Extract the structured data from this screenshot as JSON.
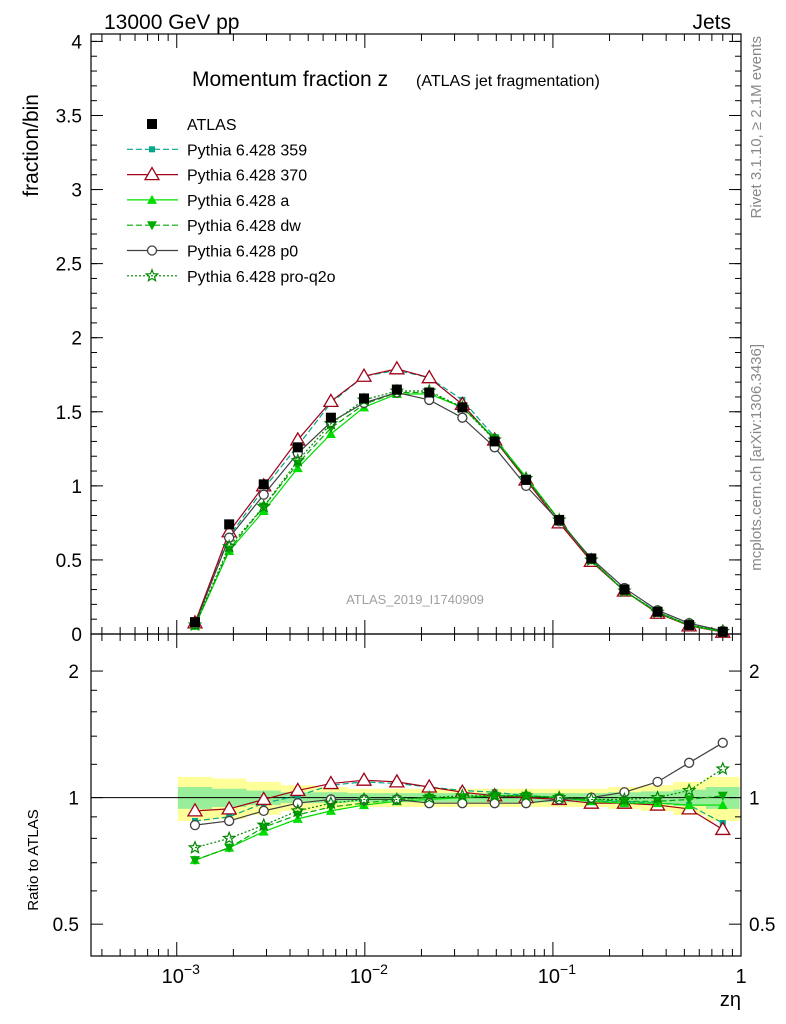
{
  "header": {
    "left": "13000 GeV pp",
    "right": "Jets"
  },
  "side": {
    "rivet": "Rivet 3.1.10, ≥ 2.1M events",
    "source": "mcplots.cern.ch [arXiv:1306.3436]"
  },
  "plot_title": {
    "main": "Momentum fraction z",
    "sub": "(ATLAS jet fragmentation)"
  },
  "watermark": "ATLAS_2019_I1740909",
  "chart_data": {
    "type": "line",
    "title": "Momentum fraction z (ATLAS jet fragmentation)",
    "x_scale": "log",
    "xlabel": "zη",
    "x_ticks": [
      {
        "value": 0.001,
        "base": "10",
        "exp": "−3"
      },
      {
        "value": 0.01,
        "base": "10",
        "exp": "−2"
      },
      {
        "value": 0.1,
        "base": "10",
        "exp": "−1"
      },
      {
        "value": 1,
        "base": "1",
        "exp": ""
      }
    ],
    "x": [
      0.00125,
      0.0019,
      0.0029,
      0.0044,
      0.0066,
      0.0099,
      0.0148,
      0.022,
      0.033,
      0.049,
      0.072,
      0.108,
      0.16,
      0.24,
      0.36,
      0.53,
      0.8
    ],
    "main": {
      "ylabel": "fraction/bin",
      "ylim": [
        0,
        4.05
      ],
      "y_ticks": [
        "0",
        "0.5",
        "1",
        "1.5",
        "2",
        "2.5",
        "3",
        "3.5",
        "4"
      ],
      "series": [
        {
          "name": "ATLAS",
          "color": "#000000",
          "dash": "",
          "marker": "square",
          "values": [
            0.08,
            0.74,
            1.01,
            1.26,
            1.46,
            1.59,
            1.65,
            1.63,
            1.53,
            1.3,
            1.04,
            0.77,
            0.51,
            0.3,
            0.15,
            0.06,
            0.015
          ]
        },
        {
          "name": "Pythia 6.428 359",
          "color": "#00a88a",
          "dash": "6,3",
          "marker": "smallsquare",
          "values": [
            0.07,
            0.66,
            0.98,
            1.27,
            1.56,
            1.74,
            1.78,
            1.73,
            1.58,
            1.33,
            1.05,
            0.77,
            0.5,
            0.29,
            0.15,
            0.06,
            0.013
          ]
        },
        {
          "name": "Pythia 6.428 370",
          "color": "#a00018",
          "dash": "",
          "marker": "opentriangle",
          "values": [
            0.075,
            0.69,
            1.0,
            1.31,
            1.57,
            1.74,
            1.79,
            1.73,
            1.55,
            1.31,
            1.04,
            0.75,
            0.49,
            0.29,
            0.14,
            0.055,
            0.012
          ]
        },
        {
          "name": "Pythia 6.428 a",
          "color": "#00dd00",
          "dash": "",
          "marker": "triangle",
          "values": [
            0.055,
            0.56,
            0.83,
            1.12,
            1.35,
            1.53,
            1.62,
            1.62,
            1.53,
            1.32,
            1.06,
            0.77,
            0.5,
            0.29,
            0.145,
            0.058,
            0.014
          ]
        },
        {
          "name": "Pythia 6.428 dw",
          "color": "#00aa00",
          "dash": "6,3",
          "marker": "invtriangle",
          "values": [
            0.058,
            0.57,
            0.86,
            1.15,
            1.39,
            1.55,
            1.63,
            1.63,
            1.53,
            1.32,
            1.05,
            0.77,
            0.5,
            0.29,
            0.147,
            0.06,
            0.016
          ]
        },
        {
          "name": "Pythia 6.428 p0",
          "color": "#404040",
          "dash": "",
          "marker": "opencircle",
          "values": [
            0.068,
            0.65,
            0.94,
            1.22,
            1.43,
            1.56,
            1.63,
            1.58,
            1.46,
            1.26,
            1.0,
            0.76,
            0.51,
            0.31,
            0.16,
            0.073,
            0.021
          ]
        },
        {
          "name": "Pythia 6.428 pro-q2o",
          "color": "#008800",
          "dash": "2,2",
          "marker": "openstar",
          "values": [
            0.062,
            0.59,
            0.86,
            1.17,
            1.42,
            1.58,
            1.64,
            1.64,
            1.53,
            1.31,
            1.05,
            0.77,
            0.5,
            0.29,
            0.147,
            0.062,
            0.018
          ]
        }
      ]
    },
    "ratio": {
      "ylabel": "Ratio to ATLAS",
      "y_ticks": [
        "0.5",
        "1",
        "2"
      ],
      "band_outer": [
        0.12,
        0.11,
        0.09,
        0.07,
        0.06,
        0.05,
        0.05,
        0.05,
        0.05,
        0.05,
        0.05,
        0.05,
        0.05,
        0.06,
        0.07,
        0.09,
        0.12
      ],
      "band_inner": [
        0.06,
        0.05,
        0.04,
        0.03,
        0.03,
        0.025,
        0.025,
        0.025,
        0.025,
        0.025,
        0.025,
        0.025,
        0.025,
        0.03,
        0.035,
        0.045,
        0.06
      ],
      "series": [
        {
          "name": "Pythia 6.428 359",
          "values": [
            0.88,
            0.9,
            0.97,
            1.01,
            1.07,
            1.09,
            1.08,
            1.06,
            1.04,
            1.03,
            1.01,
            1.0,
            0.98,
            0.98,
            0.97,
            0.96,
            0.87
          ]
        },
        {
          "name": "Pythia 6.428 370",
          "values": [
            0.93,
            0.94,
            0.99,
            1.04,
            1.08,
            1.1,
            1.09,
            1.06,
            1.03,
            1.01,
            1.0,
            0.99,
            0.97,
            0.97,
            0.96,
            0.94,
            0.84
          ]
        },
        {
          "name": "Pythia 6.428 a",
          "values": [
            0.71,
            0.76,
            0.83,
            0.89,
            0.93,
            0.96,
            0.98,
            0.99,
            1.0,
            1.01,
            1.01,
            1.0,
            0.98,
            0.97,
            0.97,
            0.96,
            0.96
          ]
        },
        {
          "name": "Pythia 6.428 dw",
          "values": [
            0.71,
            0.76,
            0.85,
            0.91,
            0.95,
            0.97,
            0.99,
            1.0,
            1.0,
            1.01,
            1.01,
            1.0,
            0.99,
            0.98,
            0.98,
            0.99,
            1.01
          ]
        },
        {
          "name": "Pythia 6.428 p0",
          "values": [
            0.86,
            0.88,
            0.93,
            0.97,
            0.99,
            0.99,
            0.99,
            0.97,
            0.97,
            0.97,
            0.97,
            0.99,
            1.0,
            1.03,
            1.09,
            1.21,
            1.35
          ]
        },
        {
          "name": "Pythia 6.428 pro-q2o",
          "values": [
            0.76,
            0.8,
            0.86,
            0.93,
            0.97,
            0.99,
            0.99,
            1.0,
            1.01,
            1.01,
            1.01,
            1.0,
            0.99,
            0.99,
            1.0,
            1.04,
            1.17
          ]
        }
      ]
    }
  }
}
